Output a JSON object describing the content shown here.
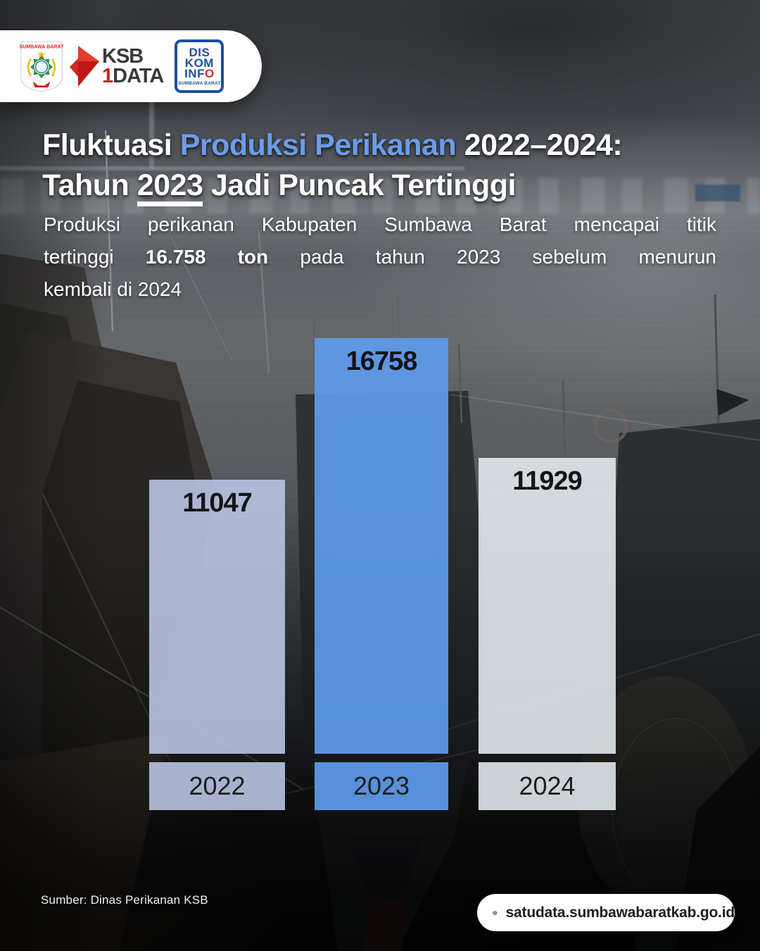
{
  "brand": {
    "crest_title": "SUMBAWA BARAT",
    "ksb_line1": "KSB",
    "ksb_one": "1",
    "ksb_data": "DATA",
    "diskominfo_line1": "DIS",
    "diskominfo_line2": "KOM",
    "diskominfo_line3_pre": "INF",
    "diskominfo_line3_o": "O",
    "diskominfo_sub": "SUMBAWA BARAT"
  },
  "title": {
    "line1_pre": "Fluktuasi ",
    "line1_highlight": "Produksi Perikanan",
    "line1_post": " 2022–2024:",
    "line2_pre": "Tahun ",
    "line2_underline": "2023",
    "line2_post": " Jadi Puncak Tertinggi",
    "highlight_color": "#6b9ce8"
  },
  "subtitle": {
    "line1": "Produksi perikanan Kabupaten Sumbawa Barat mencapai titik",
    "line2_pre": "tertinggi ",
    "line2_bold": "16.758 ton",
    "line2_post": " pada tahun 2023 sebelum menurun",
    "line3": "kembali di 2024"
  },
  "chart_data": {
    "type": "bar",
    "categories": [
      "2022",
      "2023",
      "2024"
    ],
    "values": [
      11047,
      16758,
      11929
    ],
    "value_labels": [
      "11047",
      "16758",
      "11929"
    ],
    "bar_colors": [
      "rgba(185,196,226,0.9)",
      "rgba(94,154,233,0.93)",
      "rgba(226,232,236,0.9)"
    ],
    "ylim": [
      0,
      16758
    ],
    "title": "",
    "xlabel": "",
    "ylabel": "",
    "grid": false,
    "legend": false
  },
  "footer": {
    "source": "Sumber: Dinas Perikanan KSB",
    "website": "satudata.sumbawabaratkab.go.id"
  },
  "icons": {
    "globe": "globe-icon",
    "crest": "regency-crest-icon",
    "ksb_arrow": "ksb-arrow-icon"
  }
}
